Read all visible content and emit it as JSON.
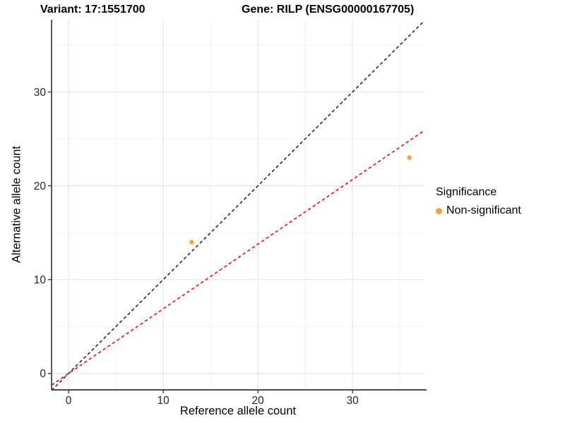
{
  "chart_data": {
    "type": "scatter",
    "titles": {
      "variant": "Variant: 17:1551700",
      "gene": "Gene: RILP (ENSG00000167705)"
    },
    "xlabel": "Reference allele count",
    "ylabel": "Alternative allele count",
    "xlim": [
      -1.8,
      37.6
    ],
    "ylim": [
      -1.75,
      37.7
    ],
    "x_major_ticks": [
      0,
      10,
      20,
      30
    ],
    "y_major_ticks": [
      0,
      10,
      20,
      30
    ],
    "x_minor_ticks": [
      5,
      15,
      25,
      35
    ],
    "y_minor_ticks": [
      5,
      15,
      25,
      35
    ],
    "grid": true,
    "points": [
      {
        "x": 13,
        "y": 14,
        "series": "Non-significant"
      },
      {
        "x": 36,
        "y": 23,
        "series": "Non-significant"
      }
    ],
    "lines": [
      {
        "name": "identity-line",
        "slope": 1,
        "intercept": 0,
        "color": "#1a1a1a",
        "style": "dashed"
      },
      {
        "name": "fit-through-origin-line",
        "slope": 0.689,
        "intercept": 0,
        "color": "#fe0000",
        "style": "dashed"
      }
    ],
    "legend": {
      "title": "Significance",
      "position": "right",
      "items": [
        {
          "label": "Non-significant",
          "color": "#F9A03B"
        }
      ]
    },
    "colors": {
      "point": "#F9A03B",
      "grid_major": "#e4e4e4",
      "grid_minor": "#f1f1f1",
      "axis_line": "#333333",
      "tick_label": "#262626",
      "background": "#ffffff"
    }
  }
}
